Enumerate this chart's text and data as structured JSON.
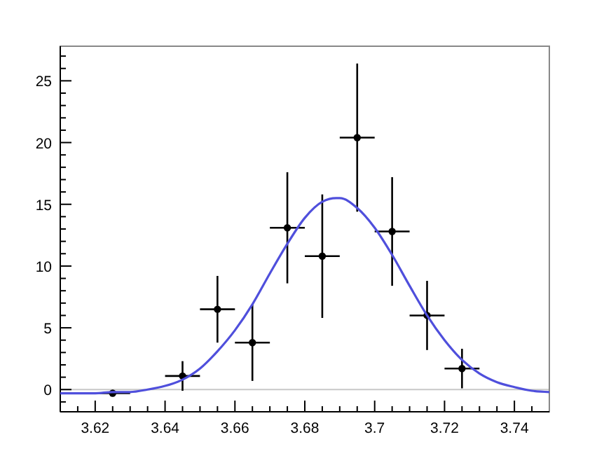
{
  "chart_data": {
    "type": "scatter",
    "xlim": [
      3.61,
      3.75
    ],
    "ylim": [
      -1.8,
      27.8
    ],
    "xticks": [
      {
        "value": 3.615,
        "label": null
      },
      {
        "value": 3.62,
        "label": "3.62"
      },
      {
        "value": 3.625,
        "label": null
      },
      {
        "value": 3.63,
        "label": null
      },
      {
        "value": 3.635,
        "label": null
      },
      {
        "value": 3.64,
        "label": "3.64"
      },
      {
        "value": 3.645,
        "label": null
      },
      {
        "value": 3.65,
        "label": null
      },
      {
        "value": 3.655,
        "label": null
      },
      {
        "value": 3.66,
        "label": "3.66"
      },
      {
        "value": 3.665,
        "label": null
      },
      {
        "value": 3.67,
        "label": null
      },
      {
        "value": 3.675,
        "label": null
      },
      {
        "value": 3.68,
        "label": "3.68"
      },
      {
        "value": 3.685,
        "label": null
      },
      {
        "value": 3.69,
        "label": null
      },
      {
        "value": 3.695,
        "label": null
      },
      {
        "value": 3.7,
        "label": "3.7"
      },
      {
        "value": 3.705,
        "label": null
      },
      {
        "value": 3.71,
        "label": null
      },
      {
        "value": 3.715,
        "label": null
      },
      {
        "value": 3.72,
        "label": "3.72"
      },
      {
        "value": 3.725,
        "label": null
      },
      {
        "value": 3.73,
        "label": null
      },
      {
        "value": 3.735,
        "label": null
      },
      {
        "value": 3.74,
        "label": "3.74"
      },
      {
        "value": 3.745,
        "label": null
      }
    ],
    "yticks": [
      {
        "value": -1,
        "label": null
      },
      0,
      {
        "value": 1,
        "label": null
      },
      {
        "value": 2,
        "label": null
      },
      {
        "value": 3,
        "label": null
      },
      {
        "value": 4,
        "label": null
      },
      5,
      {
        "value": 6,
        "label": null
      },
      {
        "value": 7,
        "label": null
      },
      {
        "value": 8,
        "label": null
      },
      {
        "value": 9,
        "label": null
      },
      10,
      {
        "value": 11,
        "label": null
      },
      {
        "value": 12,
        "label": null
      },
      {
        "value": 13,
        "label": null
      },
      {
        "value": 14,
        "label": null
      },
      15,
      {
        "value": 16,
        "label": null
      },
      {
        "value": 17,
        "label": null
      },
      {
        "value": 18,
        "label": null
      },
      {
        "value": 19,
        "label": null
      },
      20,
      {
        "value": 21,
        "label": null
      },
      {
        "value": 22,
        "label": null
      },
      {
        "value": 23,
        "label": null
      },
      {
        "value": 24,
        "label": null
      },
      25,
      {
        "value": 26,
        "label": null
      },
      {
        "value": 27,
        "label": null
      }
    ],
    "grid": false,
    "marker": "circle",
    "ref_lines": [
      {
        "axis": "y",
        "value": 0,
        "color": "#c8c8c8"
      }
    ],
    "series": [
      {
        "color": "#000000",
        "x": [
          3.625,
          3.645,
          3.655,
          3.665,
          3.675,
          3.685,
          3.695,
          3.705,
          3.715,
          3.725
        ],
        "values": [
          -0.3,
          1.1,
          6.5,
          3.8,
          13.1,
          10.8,
          20.4,
          12.8,
          6.0,
          1.7
        ],
        "errors": [
          0.1,
          1.2,
          2.7,
          3.1,
          4.5,
          5.0,
          6.0,
          4.4,
          2.8,
          1.6
        ],
        "xerrors": [
          0.005,
          0.005,
          0.005,
          0.005,
          0.005,
          0.005,
          0.005,
          0.005,
          0.005,
          0.005
        ]
      },
      {
        "type": "line",
        "color": "#4f4fdc",
        "marker": "none",
        "x": [
          3.61,
          3.615,
          3.62,
          3.625,
          3.63,
          3.635,
          3.64,
          3.645,
          3.65,
          3.655,
          3.66,
          3.665,
          3.67,
          3.675,
          3.68,
          3.685,
          3.689,
          3.69,
          3.695,
          3.7,
          3.705,
          3.71,
          3.715,
          3.72,
          3.725,
          3.73,
          3.735,
          3.74,
          3.745,
          3.75
        ],
        "values": [
          -0.3,
          -0.3,
          -0.3,
          -0.2,
          -0.2,
          0.0,
          0.3,
          0.8,
          1.7,
          3.1,
          4.8,
          6.9,
          9.4,
          11.8,
          13.9,
          15.2,
          15.5,
          15.5,
          14.7,
          13.1,
          10.9,
          8.4,
          6.0,
          4.0,
          2.4,
          1.3,
          0.6,
          0.2,
          -0.1,
          -0.2
        ]
      }
    ]
  }
}
